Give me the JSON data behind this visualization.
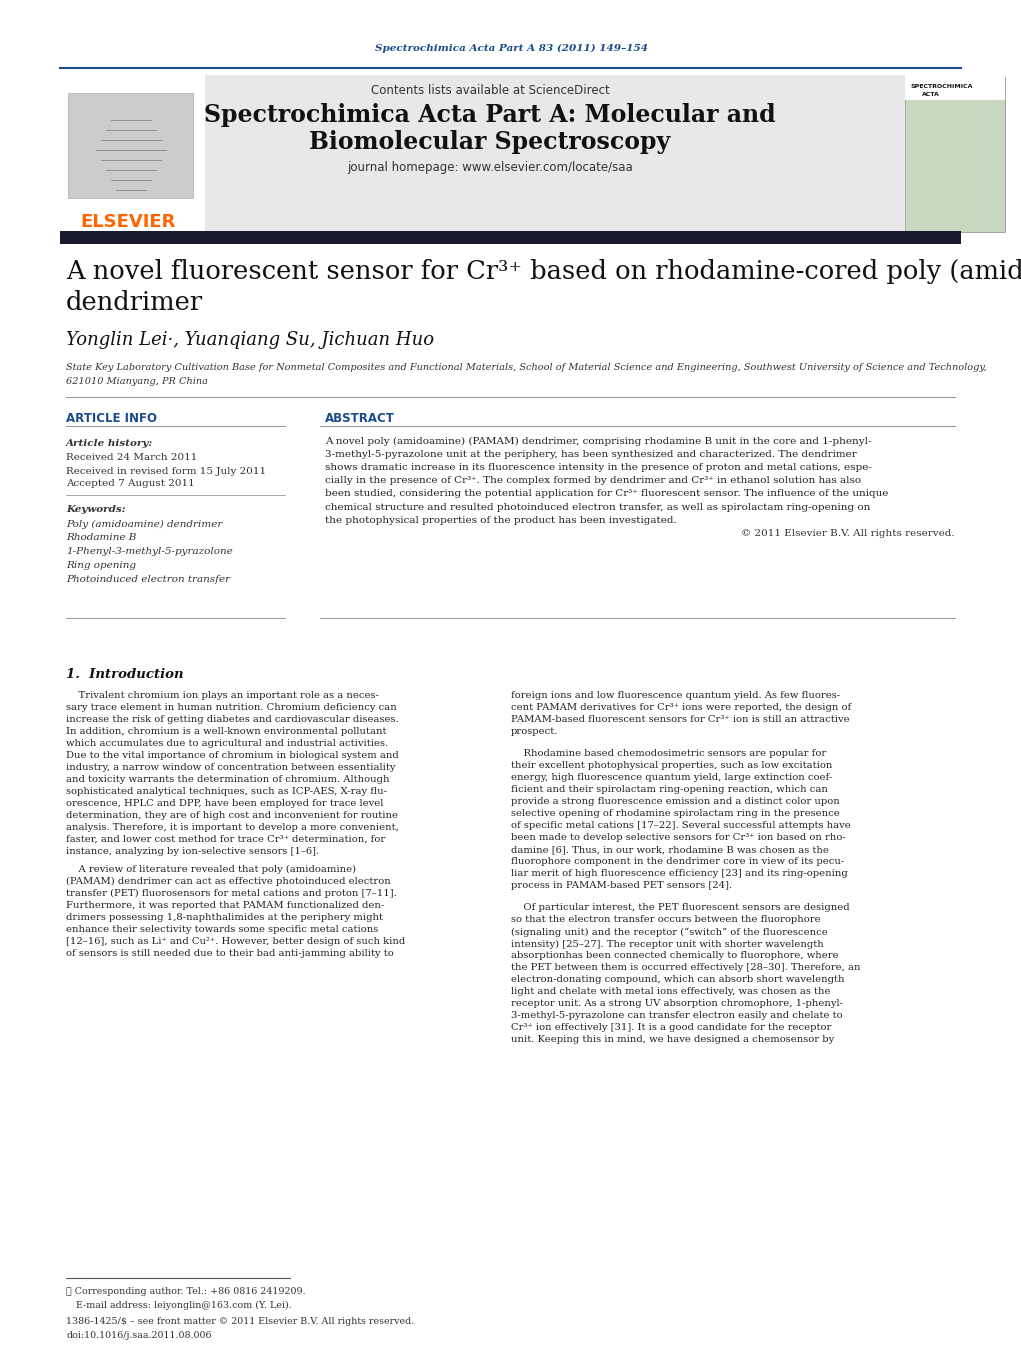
{
  "page_bg": "#ffffff",
  "header_journal_text": "Spectrochimica Acta Part A 83 (2011) 149–154",
  "header_journal_color": "#1a4a8a",
  "journal_name_line1": "Spectrochimica Acta Part A: Molecular and",
  "journal_name_line2": "Biomolecular Spectroscopy",
  "journal_homepage_prefix": "journal homepage: ",
  "journal_homepage_url": "www.elsevier.com/locate/saa",
  "contents_text": "Contents lists available at ",
  "sciencedirect_text": "ScienceDirect",
  "sciencedirect_color": "#1a6496",
  "elsevier_color": "#ff6600",
  "header_bg": "#e8e8e8",
  "dark_bar_color": "#1a1a2e",
  "article_info_header": "ARTICLE INFO",
  "abstract_header": "ABSTRACT",
  "article_history_label": "Article history:",
  "received_line1": "Received 24 March 2011",
  "received_line2": "Received in revised form 15 July 2011",
  "accepted_line": "Accepted 7 August 2011",
  "keywords_label": "Keywords:",
  "keyword1": "Poly (amidoamine) dendrimer",
  "keyword2": "Rhodamine B",
  "keyword3": "1-Phenyl-3-methyl-5-pyrazolone",
  "keyword4": "Ring opening",
  "keyword5": "Photoinduced electron transfer",
  "copyright_text": "© 2011 Elsevier B.V. All rights reserved.",
  "intro_header": "1.  Introduction"
}
